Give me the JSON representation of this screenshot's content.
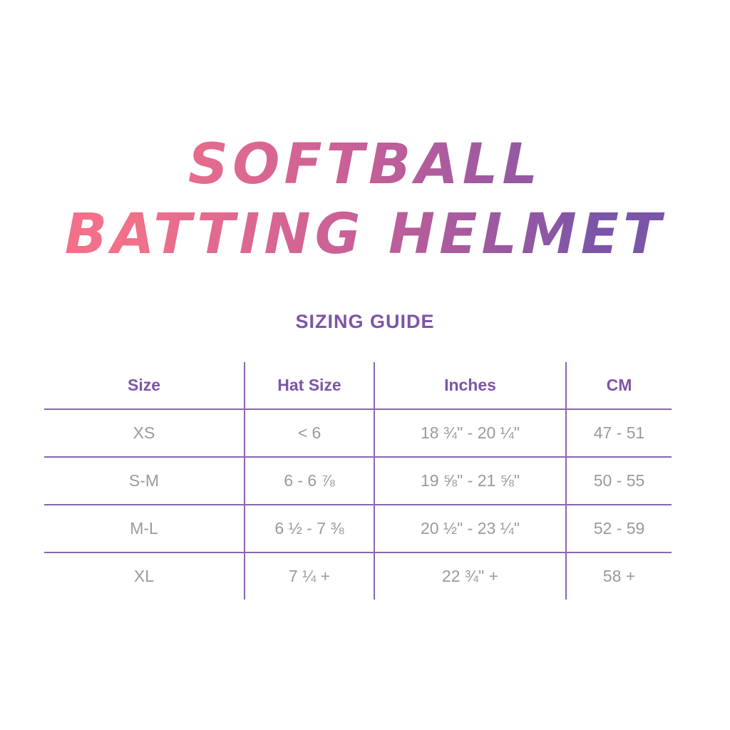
{
  "title": {
    "line1": "SOFTBALL",
    "line2": "BATTING HELMET",
    "gradient": [
      "#f2708a",
      "#7b55a8"
    ]
  },
  "subtitle": "SIZING GUIDE",
  "colors": {
    "accent": "#7d55a5",
    "body_text": "#9a9a9a"
  },
  "table": {
    "headers": [
      "Size",
      "Hat Size",
      "Inches",
      "CM"
    ],
    "rows": [
      [
        "XS",
        "< 6",
        "18 ¾\" - 20 ¼\"",
        "47 - 51"
      ],
      [
        "S-M",
        "6 - 6 ⅞",
        "19 ⅝\" - 21 ⅝\"",
        "50 - 55"
      ],
      [
        "M-L",
        "6 ½ - 7 ⅜",
        "20 ½\" - 23 ¼\"",
        "52 - 59"
      ],
      [
        "XL",
        "7 ¼ +",
        "22 ¾\" +",
        "58 +"
      ]
    ]
  }
}
